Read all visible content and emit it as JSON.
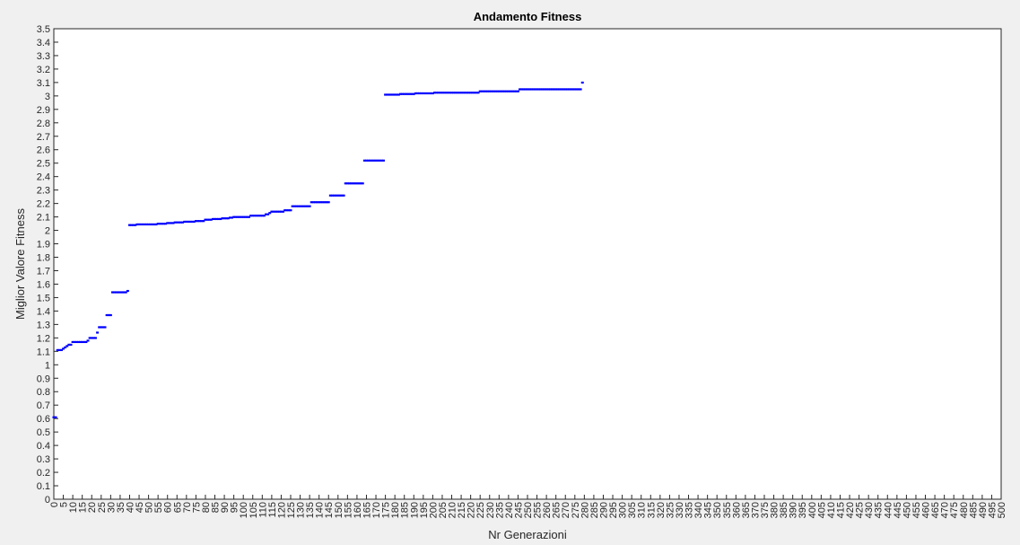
{
  "chart_data": {
    "type": "scatter",
    "title": "Andamento Fitness",
    "xlabel": "Nr Generazioni",
    "ylabel": "Miglior Valore Fitness",
    "xlim": [
      0,
      500
    ],
    "ylim": [
      0,
      3.5
    ],
    "x_tick_step": 5,
    "y_tick_step": 0.1,
    "grid": false,
    "marker": "point",
    "marker_color": "#0000ff",
    "series": [
      {
        "points": [
          [
            0,
            0.61
          ],
          [
            1,
            0.61
          ],
          [
            2,
            1.11
          ],
          [
            3,
            1.11
          ],
          [
            4,
            1.11
          ],
          [
            5,
            1.12
          ],
          [
            6,
            1.13
          ],
          [
            7,
            1.14
          ],
          [
            8,
            1.15
          ],
          [
            9,
            1.15
          ],
          [
            10,
            1.17
          ],
          [
            11,
            1.17
          ],
          [
            12,
            1.17
          ],
          [
            13,
            1.17
          ],
          [
            14,
            1.17
          ],
          [
            15,
            1.17
          ],
          [
            16,
            1.17
          ],
          [
            17,
            1.17
          ],
          [
            18,
            1.18
          ],
          [
            19,
            1.2
          ],
          [
            20,
            1.2
          ],
          [
            21,
            1.2
          ],
          [
            22,
            1.2
          ],
          [
            23,
            1.24
          ],
          [
            24,
            1.28
          ],
          [
            25,
            1.28
          ],
          [
            26,
            1.28
          ],
          [
            27,
            1.28
          ],
          [
            28,
            1.37
          ],
          [
            29,
            1.37
          ],
          [
            30,
            1.37
          ],
          [
            31,
            1.54
          ],
          [
            32,
            1.54
          ],
          [
            33,
            1.54
          ],
          [
            34,
            1.54
          ],
          [
            35,
            1.54
          ],
          [
            36,
            1.54
          ],
          [
            37,
            1.54
          ],
          [
            38,
            1.54
          ],
          [
            39,
            1.55
          ],
          [
            40,
            2.04
          ],
          [
            41,
            2.04
          ],
          [
            42,
            2.04
          ],
          [
            43,
            2.04
          ],
          [
            44,
            2.045
          ],
          [
            45,
            2.045
          ],
          [
            46,
            2.045
          ],
          [
            47,
            2.045
          ],
          [
            48,
            2.045
          ],
          [
            49,
            2.045
          ],
          [
            50,
            2.045
          ],
          [
            51,
            2.045
          ],
          [
            52,
            2.045
          ],
          [
            53,
            2.045
          ],
          [
            54,
            2.045
          ],
          [
            55,
            2.05
          ],
          [
            56,
            2.05
          ],
          [
            57,
            2.05
          ],
          [
            58,
            2.05
          ],
          [
            59,
            2.05
          ],
          [
            60,
            2.055
          ],
          [
            61,
            2.055
          ],
          [
            62,
            2.055
          ],
          [
            63,
            2.055
          ],
          [
            64,
            2.06
          ],
          [
            65,
            2.06
          ],
          [
            66,
            2.06
          ],
          [
            67,
            2.06
          ],
          [
            68,
            2.06
          ],
          [
            69,
            2.065
          ],
          [
            70,
            2.065
          ],
          [
            71,
            2.065
          ],
          [
            72,
            2.065
          ],
          [
            73,
            2.065
          ],
          [
            74,
            2.065
          ],
          [
            75,
            2.07
          ],
          [
            76,
            2.07
          ],
          [
            77,
            2.07
          ],
          [
            78,
            2.07
          ],
          [
            79,
            2.07
          ],
          [
            80,
            2.08
          ],
          [
            81,
            2.08
          ],
          [
            82,
            2.08
          ],
          [
            83,
            2.08
          ],
          [
            84,
            2.085
          ],
          [
            85,
            2.085
          ],
          [
            86,
            2.085
          ],
          [
            87,
            2.085
          ],
          [
            88,
            2.085
          ],
          [
            89,
            2.09
          ],
          [
            90,
            2.09
          ],
          [
            91,
            2.09
          ],
          [
            92,
            2.09
          ],
          [
            93,
            2.095
          ],
          [
            94,
            2.095
          ],
          [
            95,
            2.1
          ],
          [
            96,
            2.1
          ],
          [
            97,
            2.1
          ],
          [
            98,
            2.1
          ],
          [
            99,
            2.1
          ],
          [
            100,
            2.1
          ],
          [
            101,
            2.1
          ],
          [
            102,
            2.1
          ],
          [
            103,
            2.1
          ],
          [
            104,
            2.11
          ],
          [
            105,
            2.11
          ],
          [
            106,
            2.11
          ],
          [
            107,
            2.11
          ],
          [
            108,
            2.11
          ],
          [
            109,
            2.11
          ],
          [
            110,
            2.11
          ],
          [
            111,
            2.11
          ],
          [
            112,
            2.12
          ],
          [
            113,
            2.12
          ],
          [
            114,
            2.13
          ],
          [
            115,
            2.14
          ],
          [
            116,
            2.14
          ],
          [
            117,
            2.14
          ],
          [
            118,
            2.14
          ],
          [
            119,
            2.14
          ],
          [
            120,
            2.14
          ],
          [
            121,
            2.14
          ],
          [
            122,
            2.15
          ],
          [
            123,
            2.15
          ],
          [
            124,
            2.15
          ],
          [
            125,
            2.15
          ],
          [
            126,
            2.18
          ],
          [
            127,
            2.18
          ],
          [
            128,
            2.18
          ],
          [
            129,
            2.18
          ],
          [
            130,
            2.18
          ],
          [
            131,
            2.18
          ],
          [
            132,
            2.18
          ],
          [
            133,
            2.18
          ],
          [
            134,
            2.18
          ],
          [
            135,
            2.18
          ],
          [
            136,
            2.21
          ],
          [
            137,
            2.21
          ],
          [
            138,
            2.21
          ],
          [
            139,
            2.21
          ],
          [
            140,
            2.21
          ],
          [
            141,
            2.21
          ],
          [
            142,
            2.21
          ],
          [
            143,
            2.21
          ],
          [
            144,
            2.21
          ],
          [
            145,
            2.21
          ],
          [
            146,
            2.26
          ],
          [
            147,
            2.26
          ],
          [
            148,
            2.26
          ],
          [
            149,
            2.26
          ],
          [
            150,
            2.26
          ],
          [
            151,
            2.26
          ],
          [
            152,
            2.26
          ],
          [
            153,
            2.26
          ],
          [
            154,
            2.35
          ],
          [
            155,
            2.35
          ],
          [
            156,
            2.35
          ],
          [
            157,
            2.35
          ],
          [
            158,
            2.35
          ],
          [
            159,
            2.35
          ],
          [
            160,
            2.35
          ],
          [
            161,
            2.35
          ],
          [
            162,
            2.35
          ],
          [
            163,
            2.35
          ],
          [
            164,
            2.52
          ],
          [
            165,
            2.52
          ],
          [
            166,
            2.52
          ],
          [
            167,
            2.52
          ],
          [
            168,
            2.52
          ],
          [
            169,
            2.52
          ],
          [
            170,
            2.52
          ],
          [
            171,
            2.52
          ],
          [
            172,
            2.52
          ],
          [
            173,
            2.52
          ],
          [
            174,
            2.52
          ],
          [
            175,
            3.01
          ],
          [
            176,
            3.01
          ],
          [
            177,
            3.01
          ],
          [
            178,
            3.01
          ],
          [
            179,
            3.01
          ],
          [
            180,
            3.01
          ],
          [
            181,
            3.01
          ],
          [
            182,
            3.01
          ],
          [
            183,
            3.015
          ],
          [
            184,
            3.015
          ],
          [
            185,
            3.015
          ],
          [
            186,
            3.015
          ],
          [
            187,
            3.015
          ],
          [
            188,
            3.015
          ],
          [
            189,
            3.015
          ],
          [
            190,
            3.015
          ],
          [
            191,
            3.02
          ],
          [
            192,
            3.02
          ],
          [
            193,
            3.02
          ],
          [
            194,
            3.02
          ],
          [
            195,
            3.02
          ],
          [
            196,
            3.02
          ],
          [
            197,
            3.02
          ],
          [
            198,
            3.02
          ],
          [
            199,
            3.02
          ],
          [
            200,
            3.02
          ],
          [
            201,
            3.025
          ],
          [
            202,
            3.025
          ],
          [
            203,
            3.025
          ],
          [
            204,
            3.025
          ],
          [
            205,
            3.025
          ],
          [
            206,
            3.025
          ],
          [
            207,
            3.025
          ],
          [
            208,
            3.025
          ],
          [
            209,
            3.025
          ],
          [
            210,
            3.025
          ],
          [
            211,
            3.025
          ],
          [
            212,
            3.025
          ],
          [
            213,
            3.025
          ],
          [
            214,
            3.025
          ],
          [
            215,
            3.025
          ],
          [
            216,
            3.025
          ],
          [
            217,
            3.025
          ],
          [
            218,
            3.025
          ],
          [
            219,
            3.025
          ],
          [
            220,
            3.025
          ],
          [
            221,
            3.025
          ],
          [
            222,
            3.025
          ],
          [
            223,
            3.025
          ],
          [
            224,
            3.025
          ],
          [
            225,
            3.035
          ],
          [
            226,
            3.035
          ],
          [
            227,
            3.035
          ],
          [
            228,
            3.035
          ],
          [
            229,
            3.035
          ],
          [
            230,
            3.035
          ],
          [
            231,
            3.035
          ],
          [
            232,
            3.035
          ],
          [
            233,
            3.035
          ],
          [
            234,
            3.035
          ],
          [
            235,
            3.035
          ],
          [
            236,
            3.035
          ],
          [
            237,
            3.035
          ],
          [
            238,
            3.035
          ],
          [
            239,
            3.035
          ],
          [
            240,
            3.035
          ],
          [
            241,
            3.035
          ],
          [
            242,
            3.035
          ],
          [
            243,
            3.035
          ],
          [
            244,
            3.035
          ],
          [
            245,
            3.035
          ],
          [
            246,
            3.05
          ],
          [
            247,
            3.05
          ],
          [
            248,
            3.05
          ],
          [
            249,
            3.05
          ],
          [
            250,
            3.05
          ],
          [
            251,
            3.05
          ],
          [
            252,
            3.05
          ],
          [
            253,
            3.05
          ],
          [
            254,
            3.05
          ],
          [
            255,
            3.05
          ],
          [
            256,
            3.05
          ],
          [
            257,
            3.05
          ],
          [
            258,
            3.05
          ],
          [
            259,
            3.05
          ],
          [
            260,
            3.05
          ],
          [
            261,
            3.05
          ],
          [
            262,
            3.05
          ],
          [
            263,
            3.05
          ],
          [
            264,
            3.05
          ],
          [
            265,
            3.05
          ],
          [
            266,
            3.05
          ],
          [
            267,
            3.05
          ],
          [
            268,
            3.05
          ],
          [
            269,
            3.05
          ],
          [
            270,
            3.05
          ],
          [
            271,
            3.05
          ],
          [
            272,
            3.05
          ],
          [
            273,
            3.05
          ],
          [
            274,
            3.05
          ],
          [
            275,
            3.05
          ],
          [
            276,
            3.05
          ],
          [
            277,
            3.05
          ],
          [
            278,
            3.05
          ],
          [
            279,
            3.1
          ]
        ]
      }
    ]
  }
}
